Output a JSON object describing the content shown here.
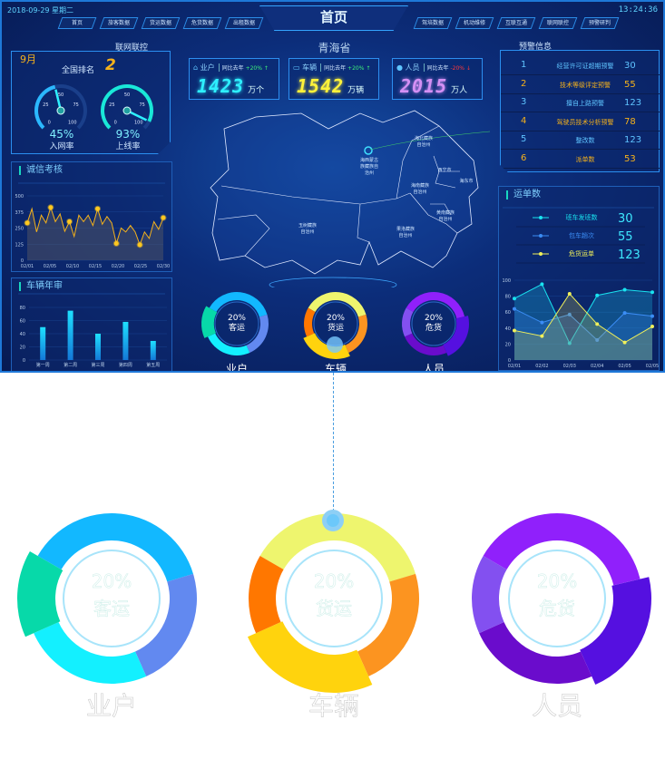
{
  "header": {
    "date": "2018-09-29  星期二",
    "time": "13:24:36",
    "title": "首页",
    "nav_left": [
      "首页",
      "旅客数据",
      "货运数据",
      "危货数据",
      "出租数据"
    ],
    "nav_right": [
      "驾培数据",
      "机动维修",
      "互联互通",
      "联网联控",
      "预警研判"
    ]
  },
  "province": "青海省",
  "network": {
    "title": "联网联控",
    "month": "9月",
    "rank_label": "全国排名",
    "rank": "2",
    "gauges": [
      {
        "value": 45,
        "text": "45%",
        "label": "入网率",
        "color": "#2bb8ff",
        "ticks": [
          "0",
          "25",
          "50",
          "75",
          "100"
        ]
      },
      {
        "value": 93,
        "text": "93%",
        "label": "上线率",
        "color": "#19e8d8",
        "ticks": [
          "0",
          "25",
          "50",
          "75",
          "100"
        ]
      }
    ]
  },
  "cards": [
    {
      "icon": "home-icon",
      "label": "业户",
      "compare": "同比去年",
      "change": "+20% ↑",
      "change_color": "#3ef07a",
      "value": "1423",
      "unit": "万个",
      "color": "#2ef0ff"
    },
    {
      "icon": "car-icon",
      "label": "车辆",
      "compare": "同比去年",
      "change": "+20% ↑",
      "change_color": "#3ef07a",
      "value": "1542",
      "unit": "万辆",
      "color": "#fff23a"
    },
    {
      "icon": "user-icon",
      "label": "人员",
      "compare": "同比去年",
      "change": "-20% ↓",
      "change_color": "#ff3a3a",
      "value": "2015",
      "unit": "万人",
      "color": "#d490f5"
    }
  ],
  "map": {
    "regions": [
      "海西蒙古族藏族自治州",
      "海北藏族自治州",
      "西宁市",
      "海东市",
      "海南藏族自治州",
      "黄南藏族自治州",
      "玉树藏族自治州",
      "果洛藏族自治州"
    ]
  },
  "warnings": {
    "title": "预警信息",
    "items": [
      {
        "rank": "1",
        "label": "经营许可证超期预警",
        "value": "30"
      },
      {
        "rank": "2",
        "label": "技术等级评定预警",
        "value": "55"
      },
      {
        "rank": "3",
        "label": "擅自上路预警",
        "value": "123"
      },
      {
        "rank": "4",
        "label": "驾驶员技术分析预警",
        "value": "78"
      },
      {
        "rank": "5",
        "label": "整改数",
        "value": "123"
      },
      {
        "rank": "6",
        "label": "派单数",
        "value": "53"
      }
    ]
  },
  "donuts": [
    {
      "title": "业户",
      "pct": "20%",
      "sub": "客运",
      "segments": [
        {
          "v": 37,
          "c": "#12b8ff"
        },
        {
          "v": 23,
          "c": "#6289f0"
        },
        {
          "v": 25,
          "c": "#13f0ff"
        },
        {
          "v": 15,
          "c": "#07d9a9",
          "raised": true
        }
      ]
    },
    {
      "title": "车辆",
      "pct": "20%",
      "sub": "货运",
      "segments": [
        {
          "v": 37,
          "c": "#eef56e"
        },
        {
          "v": 23,
          "c": "#fc9420"
        },
        {
          "v": 25,
          "c": "#ffd30d",
          "raised": true
        },
        {
          "v": 15,
          "c": "#ff7700"
        }
      ]
    },
    {
      "title": "人员",
      "pct": "20%",
      "sub": "危货",
      "segments": [
        {
          "v": 38,
          "c": "#9020fb"
        },
        {
          "v": 22,
          "c": "#5510e0",
          "raised": true
        },
        {
          "v": 25,
          "c": "#6a0ccc"
        },
        {
          "v": 15,
          "c": "#8350f0"
        }
      ]
    }
  ],
  "chart_data": [
    {
      "type": "area",
      "title": "诚信考核",
      "ylim": [
        0,
        500
      ],
      "yticks": [
        0,
        125,
        250,
        375,
        500
      ],
      "xtick_labels": [
        "02/01",
        "02/05",
        "02/10",
        "02/15",
        "02/20",
        "02/25",
        "02/30"
      ],
      "values": [
        290,
        400,
        220,
        350,
        290,
        410,
        300,
        360,
        225,
        300,
        185,
        350,
        300,
        350,
        270,
        400,
        280,
        340,
        290,
        130,
        250,
        220,
        270,
        220,
        120,
        220,
        170,
        300,
        240,
        330
      ],
      "highlight_indices": [
        0,
        5,
        9,
        15,
        19,
        24,
        29
      ],
      "color": "#f5b21b"
    },
    {
      "type": "bar",
      "title": "车辆年审",
      "categories": [
        "第一周",
        "第二周",
        "第三周",
        "第四周",
        "第五周"
      ],
      "values": [
        50,
        75,
        40,
        58,
        29
      ],
      "ylim": [
        0,
        80
      ],
      "yticks": [
        0,
        20,
        40,
        60,
        80
      ],
      "color": "#19b8f5"
    },
    {
      "type": "line",
      "title": "运单数",
      "categories": [
        "02/01",
        "02/02",
        "02/03",
        "02/04",
        "02/05",
        "02/05"
      ],
      "ylim": [
        0,
        100
      ],
      "yticks": [
        0,
        20,
        40,
        60,
        80,
        100
      ],
      "series": [
        {
          "name": "班车发班数",
          "total": "30",
          "color": "#19e3f0",
          "values": [
            77,
            95,
            21,
            81,
            88,
            85
          ]
        },
        {
          "name": "包车趟次",
          "total": "55",
          "color": "#3b8df5",
          "values": [
            64,
            47,
            57,
            25,
            59,
            55
          ]
        },
        {
          "name": "危货运单",
          "total": "123",
          "color": "#f0f05a",
          "values": [
            37,
            30,
            83,
            45,
            22,
            42
          ]
        }
      ]
    }
  ]
}
